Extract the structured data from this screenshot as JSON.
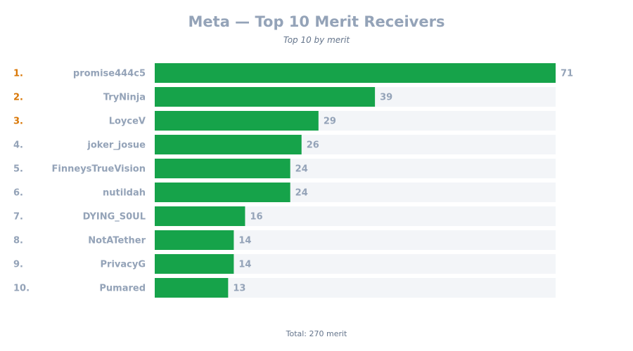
{
  "header": {
    "title": "Meta — Top 10 Merit Receivers",
    "subtitle": "Top 10 by merit"
  },
  "footer": {
    "total_label": "Total: 270 merit"
  },
  "colors": {
    "bar": "#16a34a",
    "track": "#f3f5f8",
    "label": "#94a3b8",
    "top_rank": "#d97706",
    "rank": "#94a3b8"
  },
  "chart_data": {
    "type": "bar",
    "orientation": "horizontal",
    "title": "Meta — Top 10 Merit Receivers",
    "subtitle": "Top 10 by merit",
    "ranks": [
      "1.",
      "2.",
      "3.",
      "4.",
      "5.",
      "6.",
      "7.",
      "8.",
      "9.",
      "10."
    ],
    "categories": [
      "promise444c5",
      "TryNinja",
      "LoyceV",
      "joker_josue",
      "FinneysTrueVision",
      "nutildah",
      "DYING_S0UL",
      "NotATether",
      "PrivacyG",
      "Pumared"
    ],
    "values": [
      71,
      39,
      29,
      26,
      24,
      24,
      16,
      14,
      14,
      13
    ],
    "xlim": [
      0,
      71
    ],
    "grid": false
  }
}
